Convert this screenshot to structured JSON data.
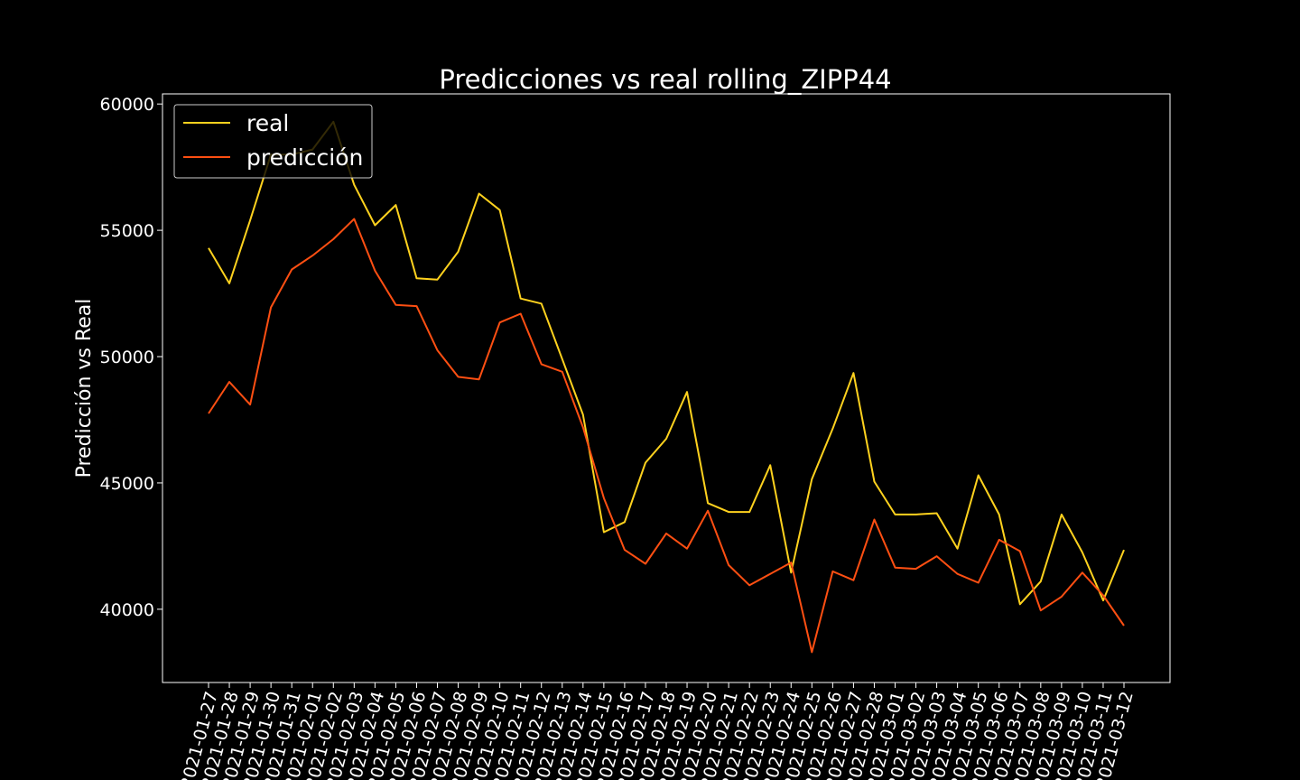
{
  "chart_data": {
    "type": "line",
    "title": "Predicciones vs real rolling_ZIPP44",
    "xlabel": "",
    "ylabel": "Predicción vs Real",
    "ylim": [
      37100,
      60400
    ],
    "yticks": [
      40000,
      45000,
      50000,
      55000,
      60000
    ],
    "grid": false,
    "legend_position": "top-left",
    "x": [
      "2021-01-27",
      "2021-01-28",
      "2021-01-29",
      "2021-01-30",
      "2021-01-31",
      "2021-02-01",
      "2021-02-02",
      "2021-02-03",
      "2021-02-04",
      "2021-02-05",
      "2021-02-06",
      "2021-02-07",
      "2021-02-08",
      "2021-02-09",
      "2021-02-10",
      "2021-02-11",
      "2021-02-12",
      "2021-02-13",
      "2021-02-14",
      "2021-02-15",
      "2021-02-16",
      "2021-02-17",
      "2021-02-18",
      "2021-02-19",
      "2021-02-20",
      "2021-02-21",
      "2021-02-22",
      "2021-02-23",
      "2021-02-24",
      "2021-02-25",
      "2021-02-26",
      "2021-02-27",
      "2021-02-28",
      "2021-03-01",
      "2021-03-02",
      "2021-03-03",
      "2021-03-04",
      "2021-03-05",
      "2021-03-06",
      "2021-03-07",
      "2021-03-08",
      "2021-03-09",
      "2021-03-10",
      "2021-03-11",
      "2021-03-12"
    ],
    "series": [
      {
        "name": "real",
        "color": "#ffd21e",
        "values": [
          54300,
          52900,
          55400,
          58000,
          58000,
          58200,
          59300,
          56800,
          55200,
          56000,
          53100,
          53050,
          54150,
          56450,
          55800,
          52300,
          52100,
          49900,
          47700,
          43050,
          43450,
          45800,
          46750,
          48600,
          44200,
          43850,
          43850,
          45700,
          41450,
          45150,
          47150,
          49350,
          45050,
          43750,
          43750,
          43800,
          42400,
          45300,
          43750,
          40200,
          41100,
          43750,
          42250,
          40350,
          42350
        ]
      },
      {
        "name": "predicción",
        "color": "#ff4f12",
        "values": [
          47750,
          49000,
          48100,
          51950,
          53450,
          54000,
          54650,
          55450,
          53400,
          52050,
          52000,
          50250,
          49200,
          49100,
          51350,
          51700,
          49700,
          49400,
          47200,
          44400,
          42350,
          41800,
          43000,
          42400,
          43900,
          41750,
          40950,
          41400,
          41850,
          38300,
          41500,
          41150,
          43550,
          41650,
          41600,
          42100,
          41400,
          41050,
          42750,
          42300,
          39950,
          40500,
          41450,
          40550,
          39350
        ]
      }
    ]
  }
}
